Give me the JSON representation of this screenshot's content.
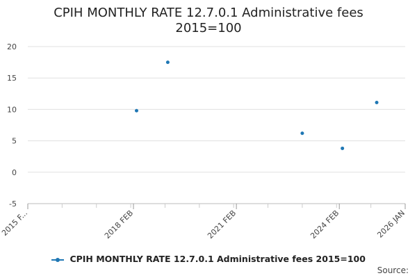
{
  "title_lines": [
    "CPIH MONTHLY RATE 12.7.0.1 Administrative fees",
    "2015=100"
  ],
  "source_label": "Source:",
  "chart_data": {
    "type": "scatter",
    "title": "CPIH MONTHLY RATE 12.7.0.1 Administrative fees 2015=100",
    "xlabel": "",
    "ylabel": "",
    "ylim": [
      -5,
      20
    ],
    "yticks": [
      -5,
      0,
      5,
      10,
      15,
      20
    ],
    "xlim": [
      2015.0,
      2026.0
    ],
    "xticks": [
      {
        "label": "2015 F...",
        "x": 2015.0
      },
      {
        "label": "2018 FEB",
        "x": 2018.08
      },
      {
        "label": "2021 FEB",
        "x": 2021.08
      },
      {
        "label": "2024 FEB",
        "x": 2024.08
      },
      {
        "label": "2026 JAN",
        "x": 2026.0
      }
    ],
    "grid": true,
    "legend": "bottom",
    "series": [
      {
        "name": "CPIH MONTHLY RATE 12.7.0.1 Administrative fees 2015=100",
        "color": "#1f77b4",
        "points": [
          {
            "x": 2018.17,
            "y": 9.8
          },
          {
            "x": 2019.08,
            "y": 17.5
          },
          {
            "x": 2023.0,
            "y": 6.2
          },
          {
            "x": 2024.17,
            "y": 3.8
          },
          {
            "x": 2025.17,
            "y": 11.1
          }
        ]
      }
    ]
  }
}
